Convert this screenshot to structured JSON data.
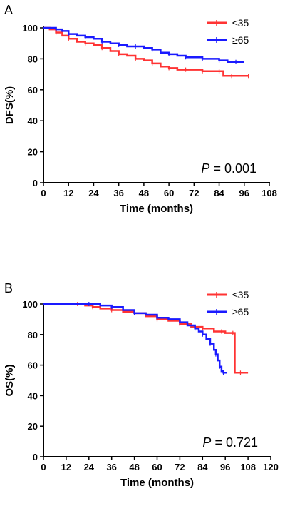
{
  "chart_data": [
    {
      "type": "line",
      "panel_label": "A",
      "xlabel": "Time (months)",
      "ylabel": "DFS(%)",
      "xlim": [
        0,
        108
      ],
      "ylim": [
        0,
        100
      ],
      "xticks": [
        0,
        12,
        24,
        36,
        48,
        60,
        72,
        84,
        96,
        108
      ],
      "yticks": [
        0,
        20,
        40,
        60,
        80,
        100
      ],
      "grid": false,
      "legend_position": "top-right",
      "annotation": {
        "italic": "P",
        "rest": " = 0.001"
      },
      "series": [
        {
          "name": "≤35",
          "color": "#ff3333",
          "x": [
            0,
            3,
            6,
            9,
            12,
            16,
            20,
            24,
            28,
            32,
            36,
            40,
            44,
            48,
            52,
            56,
            60,
            64,
            68,
            72,
            76,
            80,
            84,
            86,
            90,
            94,
            98
          ],
          "y": [
            100,
            99,
            97,
            95,
            93,
            91,
            90,
            89,
            87,
            85,
            83,
            82,
            80,
            79,
            77,
            75,
            74,
            73,
            73,
            73,
            72,
            72,
            72,
            69,
            69,
            69,
            69
          ]
        },
        {
          "name": "≥65",
          "color": "#1a1aff",
          "x": [
            0,
            3,
            6,
            9,
            12,
            16,
            20,
            24,
            28,
            32,
            36,
            40,
            44,
            48,
            52,
            56,
            60,
            64,
            68,
            72,
            76,
            80,
            84,
            88,
            92,
            96
          ],
          "y": [
            100,
            100,
            99,
            98,
            96,
            95,
            94,
            93,
            91,
            90,
            89,
            88,
            88,
            87,
            86,
            84,
            83,
            82,
            81,
            81,
            80,
            80,
            79,
            78,
            78,
            78
          ]
        }
      ]
    },
    {
      "type": "line",
      "panel_label": "B",
      "xlabel": "Time (months)",
      "ylabel": "OS(%)",
      "xlim": [
        0,
        120
      ],
      "ylim": [
        0,
        100
      ],
      "xticks": [
        0,
        12,
        24,
        36,
        48,
        60,
        72,
        84,
        96,
        108,
        120
      ],
      "yticks": [
        0,
        20,
        40,
        60,
        80,
        100
      ],
      "grid": false,
      "legend_position": "top-right",
      "annotation": {
        "italic": "P",
        "rest": " = 0.721"
      },
      "series": [
        {
          "name": "≤35",
          "color": "#ff3333",
          "x": [
            0,
            12,
            18,
            22,
            26,
            30,
            36,
            42,
            48,
            54,
            60,
            66,
            72,
            78,
            84,
            90,
            94,
            96,
            100,
            101,
            104,
            108
          ],
          "y": [
            100,
            100,
            100,
            99,
            98,
            97,
            96,
            95,
            94,
            92,
            90,
            89,
            87,
            85,
            84,
            82,
            82,
            81,
            81,
            55,
            55,
            55
          ],
          "step": true
        },
        {
          "name": "≥65",
          "color": "#1a1aff",
          "x": [
            0,
            12,
            24,
            30,
            36,
            42,
            48,
            54,
            60,
            66,
            72,
            76,
            80,
            82,
            84,
            86,
            88,
            90,
            91,
            92,
            93,
            94,
            95,
            97
          ],
          "y": [
            100,
            100,
            100,
            99,
            98,
            96,
            94,
            93,
            91,
            90,
            88,
            86,
            84,
            82,
            80,
            77,
            74,
            70,
            67,
            63,
            59,
            56,
            55,
            55
          ],
          "step": true
        }
      ]
    }
  ]
}
